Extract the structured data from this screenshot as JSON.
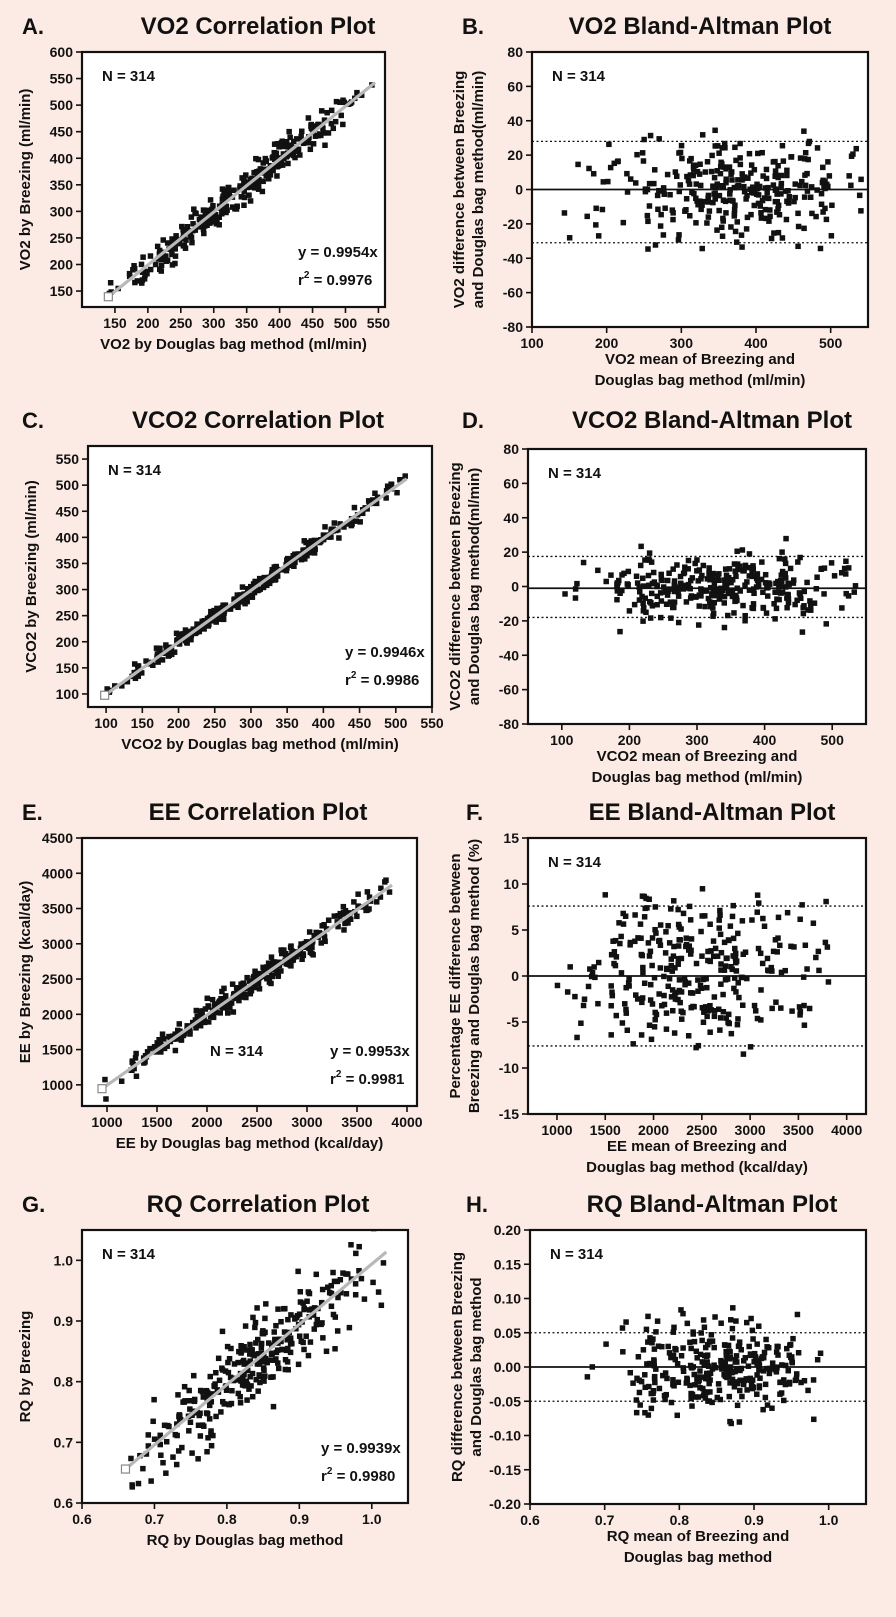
{
  "chart_data": [
    {
      "id": "A",
      "letter": "A.",
      "title": "VO2 Correlation Plot",
      "type": "scatter",
      "xlabel": "VO2 by Douglas bag method (ml/min)",
      "ylabel": "VO2 by Breezing (ml/min)",
      "xlim": [
        100,
        560
      ],
      "ylim": [
        120,
        600
      ],
      "xticks": [
        150,
        200,
        250,
        300,
        350,
        400,
        450,
        500,
        550
      ],
      "yticks": [
        150,
        200,
        250,
        300,
        350,
        400,
        450,
        500,
        550,
        600
      ],
      "n_label": "N = 314",
      "equation": "y = 0.9954x",
      "r2_prefix": "r",
      "r2_sup": "2",
      "r2_value": " = 0.9976",
      "fit": {
        "slope": 0.9954,
        "x_range": [
          140,
          545
        ],
        "color": "#b8b8b8"
      },
      "scatter": {
        "n": 314,
        "x_range": [
          140,
          545
        ],
        "spread": 15,
        "seed": 11
      },
      "grid": false
    },
    {
      "id": "B",
      "letter": "B.",
      "title": "VO2 Bland-Altman Plot",
      "type": "scatter",
      "xlabel_lines": [
        "VO2 mean of Breezing and",
        "Douglas bag method (ml/min)"
      ],
      "ylabel_lines": [
        "VO2 difference between Breezing",
        "and Douglas bag method(ml/min)"
      ],
      "xlim": [
        100,
        550
      ],
      "ylim": [
        -80,
        80
      ],
      "xticks": [
        100,
        200,
        300,
        400,
        500
      ],
      "yticks": [
        -80,
        -60,
        -40,
        -20,
        0,
        20,
        40,
        60,
        80
      ],
      "n_label": "N = 314",
      "mean_line": 0,
      "limits": [
        28,
        -31
      ],
      "scatter": {
        "n": 314,
        "x_range": [
          140,
          545
        ],
        "center": 370,
        "spread": 15,
        "clip": 36,
        "seed": 12
      },
      "grid": false
    },
    {
      "id": "C",
      "letter": "C.",
      "title": "VCO2 Correlation Plot",
      "type": "scatter",
      "xlabel": "VCO2 by Douglas bag method (ml/min)",
      "ylabel": "VCO2 by Breezing (ml/min)",
      "xlim": [
        75,
        550
      ],
      "ylim": [
        75,
        575
      ],
      "xticks": [
        100,
        150,
        200,
        250,
        300,
        350,
        400,
        450,
        500,
        550
      ],
      "yticks": [
        100,
        150,
        200,
        250,
        300,
        350,
        400,
        450,
        500,
        550
      ],
      "n_label": "N = 314",
      "equation": "y = 0.9946x",
      "r2_prefix": "r",
      "r2_sup": "2",
      "r2_value": " = 0.9986",
      "fit": {
        "slope": 0.9946,
        "x_range": [
          98,
          515
        ],
        "color": "#b8b8b8"
      },
      "scatter": {
        "n": 314,
        "x_range": [
          98,
          515
        ],
        "spread": 8,
        "seed": 21
      },
      "grid": false
    },
    {
      "id": "D",
      "letter": "D.",
      "title": "VCO2 Bland-Altman Plot",
      "type": "scatter",
      "xlabel_lines": [
        "VCO2 mean of Breezing and",
        "Douglas bag method (ml/min)"
      ],
      "ylabel_lines": [
        "VCO2 difference between Breezing",
        "and Douglas bag method(ml/min)"
      ],
      "xlim": [
        50,
        550
      ],
      "ylim": [
        -80,
        80
      ],
      "xticks": [
        100,
        200,
        300,
        400,
        500
      ],
      "yticks": [
        -80,
        -60,
        -40,
        -20,
        0,
        20,
        40,
        60,
        80
      ],
      "n_label": "N = 314",
      "mean_line": -1,
      "limits": [
        17.5,
        -18
      ],
      "scatter": {
        "n": 314,
        "x_range": [
          95,
          535
        ],
        "center": 330,
        "spread": 9,
        "clip": 33,
        "seed": 22
      },
      "grid": false
    },
    {
      "id": "E",
      "letter": "E.",
      "title": "EE Correlation Plot",
      "type": "scatter",
      "xlabel": "EE by Douglas bag method (kcal/day)",
      "ylabel": "EE by Breezing (kcal/day)",
      "xlim": [
        750,
        4100
      ],
      "ylim": [
        700,
        4500
      ],
      "xticks": [
        1000,
        1500,
        2000,
        2500,
        3000,
        3500,
        4000
      ],
      "yticks": [
        1000,
        1500,
        2000,
        2500,
        3000,
        3500,
        4000,
        4500
      ],
      "n_label": "N = 314",
      "equation": "y = 0.9953x",
      "r2_prefix": "r",
      "r2_sup": "2",
      "r2_value": " = 0.9981",
      "fit": {
        "slope": 0.9953,
        "x_range": [
          950,
          3850
        ],
        "color": "#b8b8b8"
      },
      "scatter": {
        "n": 314,
        "x_range": [
          950,
          3850
        ],
        "spread": 85,
        "seed": 31
      },
      "grid": false
    },
    {
      "id": "F",
      "letter": "F.",
      "title": "EE Bland-Altman Plot",
      "type": "scatter",
      "xlabel_lines": [
        "EE mean of Breezing and",
        "Douglas bag method (kcal/day)"
      ],
      "ylabel_lines": [
        "Percentage EE difference between",
        "Breezing and Douglas bag method (%)"
      ],
      "xlim": [
        700,
        4200
      ],
      "ylim": [
        -15,
        15
      ],
      "xticks": [
        1000,
        1500,
        2000,
        2500,
        3000,
        3500,
        4000
      ],
      "yticks": [
        -15,
        -10,
        -5,
        0,
        5,
        10,
        15
      ],
      "n_label": "N = 314",
      "mean_line": 0,
      "limits": [
        7.6,
        -7.6
      ],
      "scatter": {
        "n": 314,
        "x_range": [
          950,
          3850
        ],
        "center": 2400,
        "spread": 4.5,
        "clip": 9.5,
        "seed": 32
      },
      "grid": false
    },
    {
      "id": "G",
      "letter": "G.",
      "title": "RQ Correlation Plot",
      "type": "scatter",
      "xlabel": "RQ by Douglas bag method",
      "ylabel": "RQ by Breezing",
      "xlim": [
        0.6,
        1.05
      ],
      "ylim": [
        0.6,
        1.05
      ],
      "xticks": [
        0.6,
        0.7,
        0.8,
        0.9,
        1.0
      ],
      "xtick_labels": [
        "0.6",
        "0.7",
        "0.8",
        "0.9",
        "1.0"
      ],
      "yticks": [
        0.6,
        0.7,
        0.8,
        0.9,
        1.0
      ],
      "ytick_labels": [
        "0.6",
        "0.7",
        "0.8",
        "0.9",
        "1.0"
      ],
      "n_label": "N = 314",
      "equation": "y = 0.9939x",
      "r2_prefix": "r",
      "r2_sup": "2",
      "r2_value": " = 0.9980",
      "fit": {
        "slope": 0.9939,
        "x_range": [
          0.66,
          1.02
        ],
        "color": "#b8b8b8"
      },
      "scatter": {
        "n": 314,
        "x_range": [
          0.66,
          1.02
        ],
        "spread": 0.035,
        "seed": 41
      },
      "grid": false
    },
    {
      "id": "H",
      "letter": "H.",
      "title": "RQ Bland-Altman Plot",
      "type": "scatter",
      "xlabel_lines": [
        "RQ mean of Breezing and",
        "Douglas bag method"
      ],
      "ylabel_lines": [
        "RQ difference between Breezing",
        "and Douglas bag method"
      ],
      "xlim": [
        0.6,
        1.05
      ],
      "ylim": [
        -0.2,
        0.2
      ],
      "xticks": [
        0.6,
        0.7,
        0.8,
        0.9,
        1.0
      ],
      "xtick_labels": [
        "0.6",
        "0.7",
        "0.8",
        "0.9",
        "1.0"
      ],
      "yticks": [
        -0.2,
        -0.15,
        -0.1,
        -0.05,
        0.0,
        0.05,
        0.1,
        0.15,
        0.2
      ],
      "ytick_labels": [
        "-0.20",
        "-0.15",
        "-0.10",
        "-0.05",
        "0.00",
        "0.05",
        "0.10",
        "0.15",
        "0.20"
      ],
      "n_label": "N = 314",
      "mean_line": 0,
      "limits": [
        0.05,
        -0.05
      ],
      "scatter": {
        "n": 314,
        "x_range": [
          0.67,
          1.0
        ],
        "center": 0.85,
        "spread": 0.035,
        "clip": 0.09,
        "seed": 42
      },
      "grid": false
    }
  ]
}
